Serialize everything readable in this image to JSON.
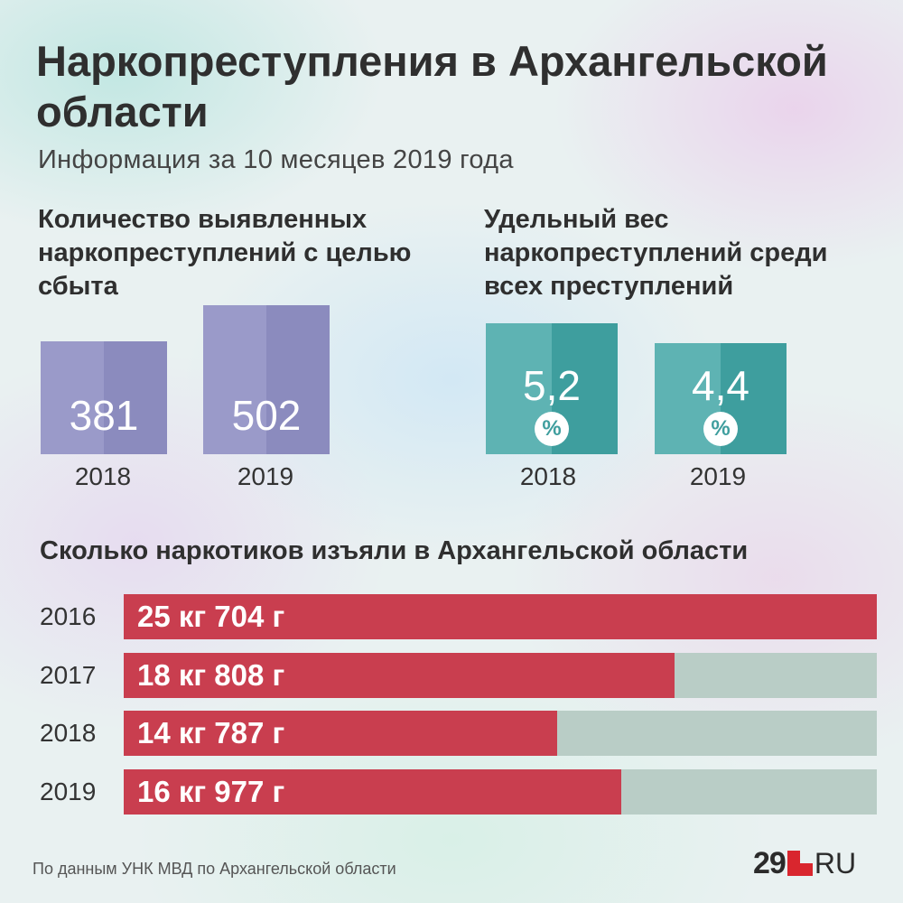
{
  "header": {
    "title": "Наркопреступления в Архангельской области",
    "subtitle": "Информация за 10 месяцев 2019 года"
  },
  "chart_data": [
    {
      "type": "bar",
      "title": "Количество выявленных наркопреступлений с целью сбыта",
      "categories": [
        "2018",
        "2019"
      ],
      "values": [
        381,
        502
      ],
      "value_labels": [
        "381",
        "502"
      ],
      "colors": {
        "bar": "#9a9ac9",
        "shade": "#8b8bbe"
      }
    },
    {
      "type": "bar",
      "title": "Удельный вес наркопреступлений среди всех преступлений",
      "categories": [
        "2018",
        "2019"
      ],
      "values": [
        5.2,
        4.4
      ],
      "value_labels": [
        "5,2",
        "4,4"
      ],
      "unit": "%",
      "colors": {
        "bar": "#5eb3b3",
        "shade": "#3e9e9e"
      }
    },
    {
      "type": "bar",
      "orientation": "horizontal",
      "title": "Сколько наркотиков изъяли в Архангельской области",
      "categories": [
        "2016",
        "2017",
        "2018",
        "2019"
      ],
      "values": [
        25.704,
        18.808,
        14.787,
        16.977
      ],
      "value_labels": [
        "25 кг 704 г",
        "18 кг 808 г",
        "14 кг 787 г",
        "16 кг 977 г"
      ],
      "xlim": [
        0,
        25.704
      ],
      "colors": {
        "bar": "#c93e4f",
        "track": "#b9cdc6"
      }
    }
  ],
  "footer": {
    "source": "По данным УНК МВД по Архангельской области",
    "logo_number": "29",
    "logo_suffix": "RU"
  }
}
